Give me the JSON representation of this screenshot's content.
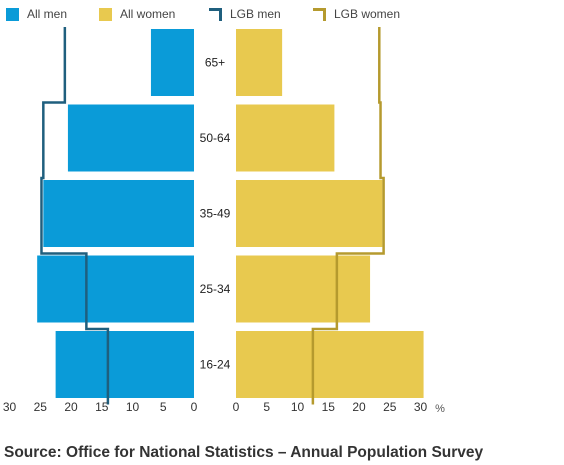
{
  "legend": [
    {
      "label": "All men",
      "color": "#0a9bd8",
      "kind": "box"
    },
    {
      "label": "All women",
      "color": "#e8c94f",
      "kind": "box"
    },
    {
      "label": "LGB men",
      "color": "#1f5f7e",
      "kind": "line"
    },
    {
      "label": "LGB women",
      "color": "#b59a2e",
      "kind": "line"
    }
  ],
  "source": "Source: Office for National Statistics – Annual Population Survey",
  "chart_data": {
    "type": "bar",
    "orientation": "horizontal-population-pyramid",
    "categories": [
      "65+",
      "50-64",
      "35-49",
      "25-34",
      "16-24"
    ],
    "unit": "%",
    "series": [
      {
        "name": "All men",
        "side": "left",
        "values": [
          7,
          20.5,
          24.5,
          25.5,
          22.5
        ],
        "color": "#0a9bd8"
      },
      {
        "name": "All women",
        "side": "right",
        "values": [
          7.5,
          16,
          23.8,
          21.8,
          30.5
        ],
        "color": "#e8c94f"
      },
      {
        "name": "LGB men",
        "side": "left",
        "values": [
          21,
          24.5,
          24.8,
          17.5,
          14
        ],
        "color": "#1f5f7e"
      },
      {
        "name": "LGB women",
        "side": "right",
        "values": [
          23.3,
          23.5,
          24,
          16.4,
          12.5
        ],
        "color": "#b59a2e"
      }
    ],
    "left_ticks": [
      30,
      25,
      20,
      15,
      10,
      5,
      0
    ],
    "right_ticks": [
      0,
      5,
      10,
      15,
      20,
      25,
      30
    ],
    "xlim": [
      0,
      30
    ],
    "grid": false
  }
}
